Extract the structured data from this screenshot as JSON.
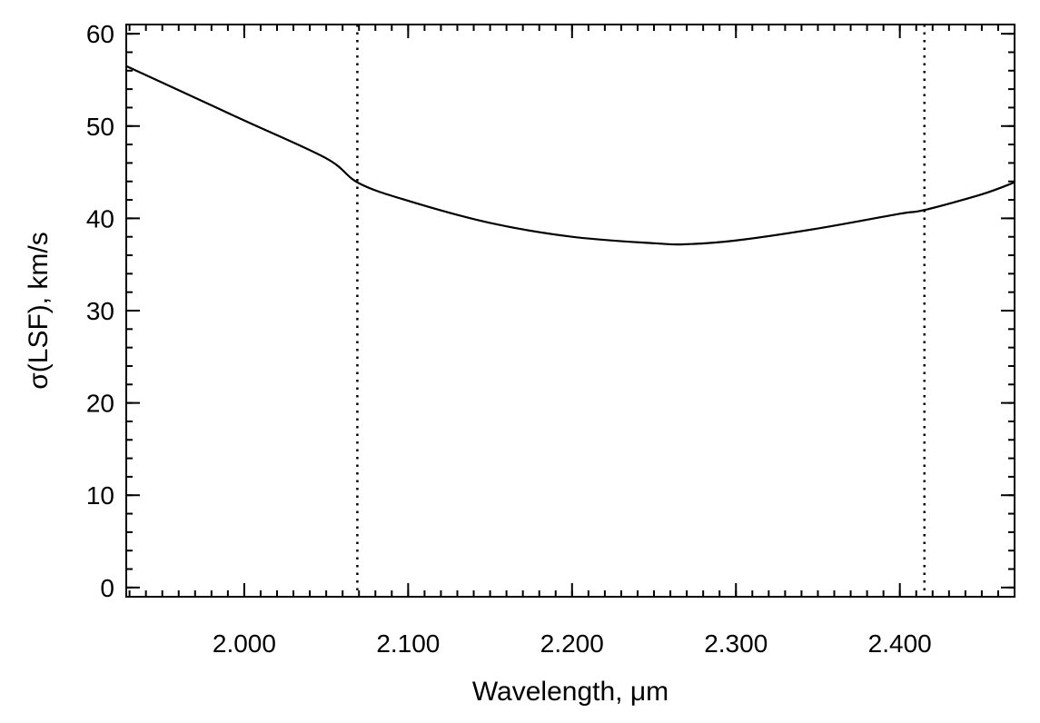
{
  "chart_data": {
    "type": "line",
    "xlabel": "Wavelength, μm",
    "ylabel": "σ(LSF), km/s",
    "xlim": [
      1.928,
      2.47
    ],
    "ylim": [
      -1,
      61
    ],
    "x_ticks": [
      2.0,
      2.1,
      2.2,
      2.3,
      2.4
    ],
    "x_tick_labels": [
      "2.000",
      "2.100",
      "2.200",
      "2.300",
      "2.400"
    ],
    "x_minor_step": 0.01,
    "y_ticks": [
      0,
      10,
      20,
      30,
      40,
      50,
      60
    ],
    "y_tick_labels": [
      "0",
      "10",
      "20",
      "30",
      "40",
      "50",
      "60"
    ],
    "y_minor_step": 2,
    "grid": false,
    "series": [
      {
        "color": "#000000",
        "style": "solid",
        "x": [
          1.928,
          1.95,
          2.0,
          2.05,
          2.07,
          2.1,
          2.15,
          2.2,
          2.25,
          2.27,
          2.3,
          2.35,
          2.4,
          2.415,
          2.45,
          2.47
        ],
        "y": [
          56.5,
          54.7,
          50.6,
          46.5,
          43.8,
          41.9,
          39.5,
          38.0,
          37.3,
          37.2,
          37.6,
          38.9,
          40.5,
          40.9,
          42.6,
          43.9
        ]
      }
    ],
    "vlines": [
      {
        "x": 2.069,
        "style": "dotted"
      },
      {
        "x": 2.415,
        "style": "dotted"
      }
    ]
  }
}
